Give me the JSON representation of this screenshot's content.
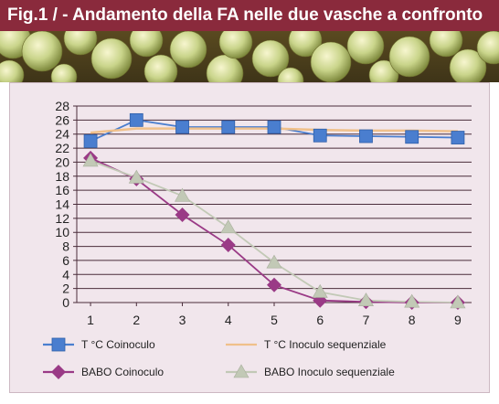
{
  "header": {
    "title": "Fig.1 / - Andamento della FA nelle due vasche a confronto",
    "color": "#8a2a3c"
  },
  "chart_data": {
    "type": "line",
    "title": "",
    "xlabel": "",
    "ylabel": "",
    "categories": [
      "1",
      "2",
      "3",
      "4",
      "5",
      "6",
      "7",
      "8",
      "9"
    ],
    "x": [
      1,
      2,
      3,
      4,
      5,
      6,
      7,
      8,
      9
    ],
    "ylim": [
      0,
      28
    ],
    "yticks": [
      0,
      2,
      4,
      6,
      8,
      10,
      12,
      14,
      16,
      18,
      20,
      22,
      24,
      26,
      28
    ],
    "grid": true,
    "legend_position": "bottom",
    "series": [
      {
        "name": "T °C Coinoculo",
        "values": [
          23,
          26,
          25,
          25,
          25,
          23.8,
          23.7,
          23.6,
          23.5
        ],
        "color": "#4a7ecf",
        "marker": "square"
      },
      {
        "name": "T °C Inoculo sequenziale",
        "values": [
          24.2,
          24.8,
          24.8,
          24.8,
          24.8,
          24.6,
          24.5,
          24.5,
          24.4
        ],
        "color": "#f0c08a",
        "marker": "none"
      },
      {
        "name": "BABO Coinoculo",
        "values": [
          20.6,
          17.6,
          12.5,
          8.2,
          2.5,
          0.3,
          0.1,
          0,
          0
        ],
        "color": "#9a3a86",
        "marker": "diamond"
      },
      {
        "name": "BABO Inoculo sequenziale",
        "values": [
          20.2,
          17.8,
          15.2,
          10.7,
          5.7,
          1.5,
          0.3,
          0.1,
          0
        ],
        "color": "#c2c9b6",
        "marker": "triangle"
      }
    ]
  }
}
